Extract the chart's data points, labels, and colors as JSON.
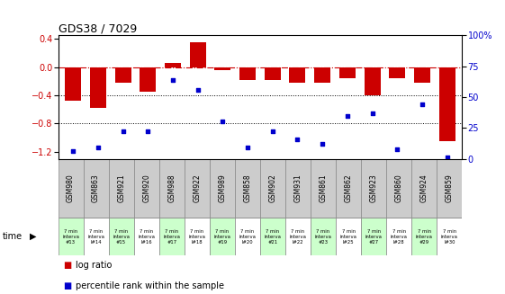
{
  "title": "GDS38 / 7029",
  "samples": [
    "GSM980",
    "GSM863",
    "GSM921",
    "GSM920",
    "GSM988",
    "GSM922",
    "GSM989",
    "GSM858",
    "GSM902",
    "GSM931",
    "GSM861",
    "GSM862",
    "GSM923",
    "GSM860",
    "GSM924",
    "GSM859"
  ],
  "interval_ids": [
    "#13",
    "l#14",
    "#15",
    "l#16",
    "#17",
    "l#18",
    "#19",
    "l#20",
    "#21",
    "l#22",
    "#23",
    "l#25",
    "#27",
    "l#28",
    "#29",
    "l#30"
  ],
  "log_ratio": [
    -0.48,
    -0.58,
    -0.22,
    -0.35,
    0.06,
    0.35,
    -0.04,
    -0.18,
    -0.18,
    -0.22,
    -0.22,
    -0.16,
    -0.4,
    -0.16,
    -0.22,
    -1.05
  ],
  "percentile": [
    6,
    9,
    22,
    22,
    64,
    56,
    30,
    9,
    22,
    16,
    12,
    35,
    37,
    8,
    44,
    1
  ],
  "bar_color": "#cc0000",
  "dot_color": "#0000cc",
  "ylim_left": [
    -1.3,
    0.45
  ],
  "ylim_right": [
    0,
    100
  ],
  "yticks_left": [
    0.4,
    0.0,
    -0.4,
    -0.8,
    -1.2
  ],
  "yticks_right": [
    100,
    75,
    50,
    25,
    0
  ],
  "bg_color": "#ffffff",
  "plot_bg": "#ffffff",
  "gsm_cell_color": "#cccccc",
  "time_cell_odd": "#ccffcc",
  "time_cell_even": "#ffffff"
}
